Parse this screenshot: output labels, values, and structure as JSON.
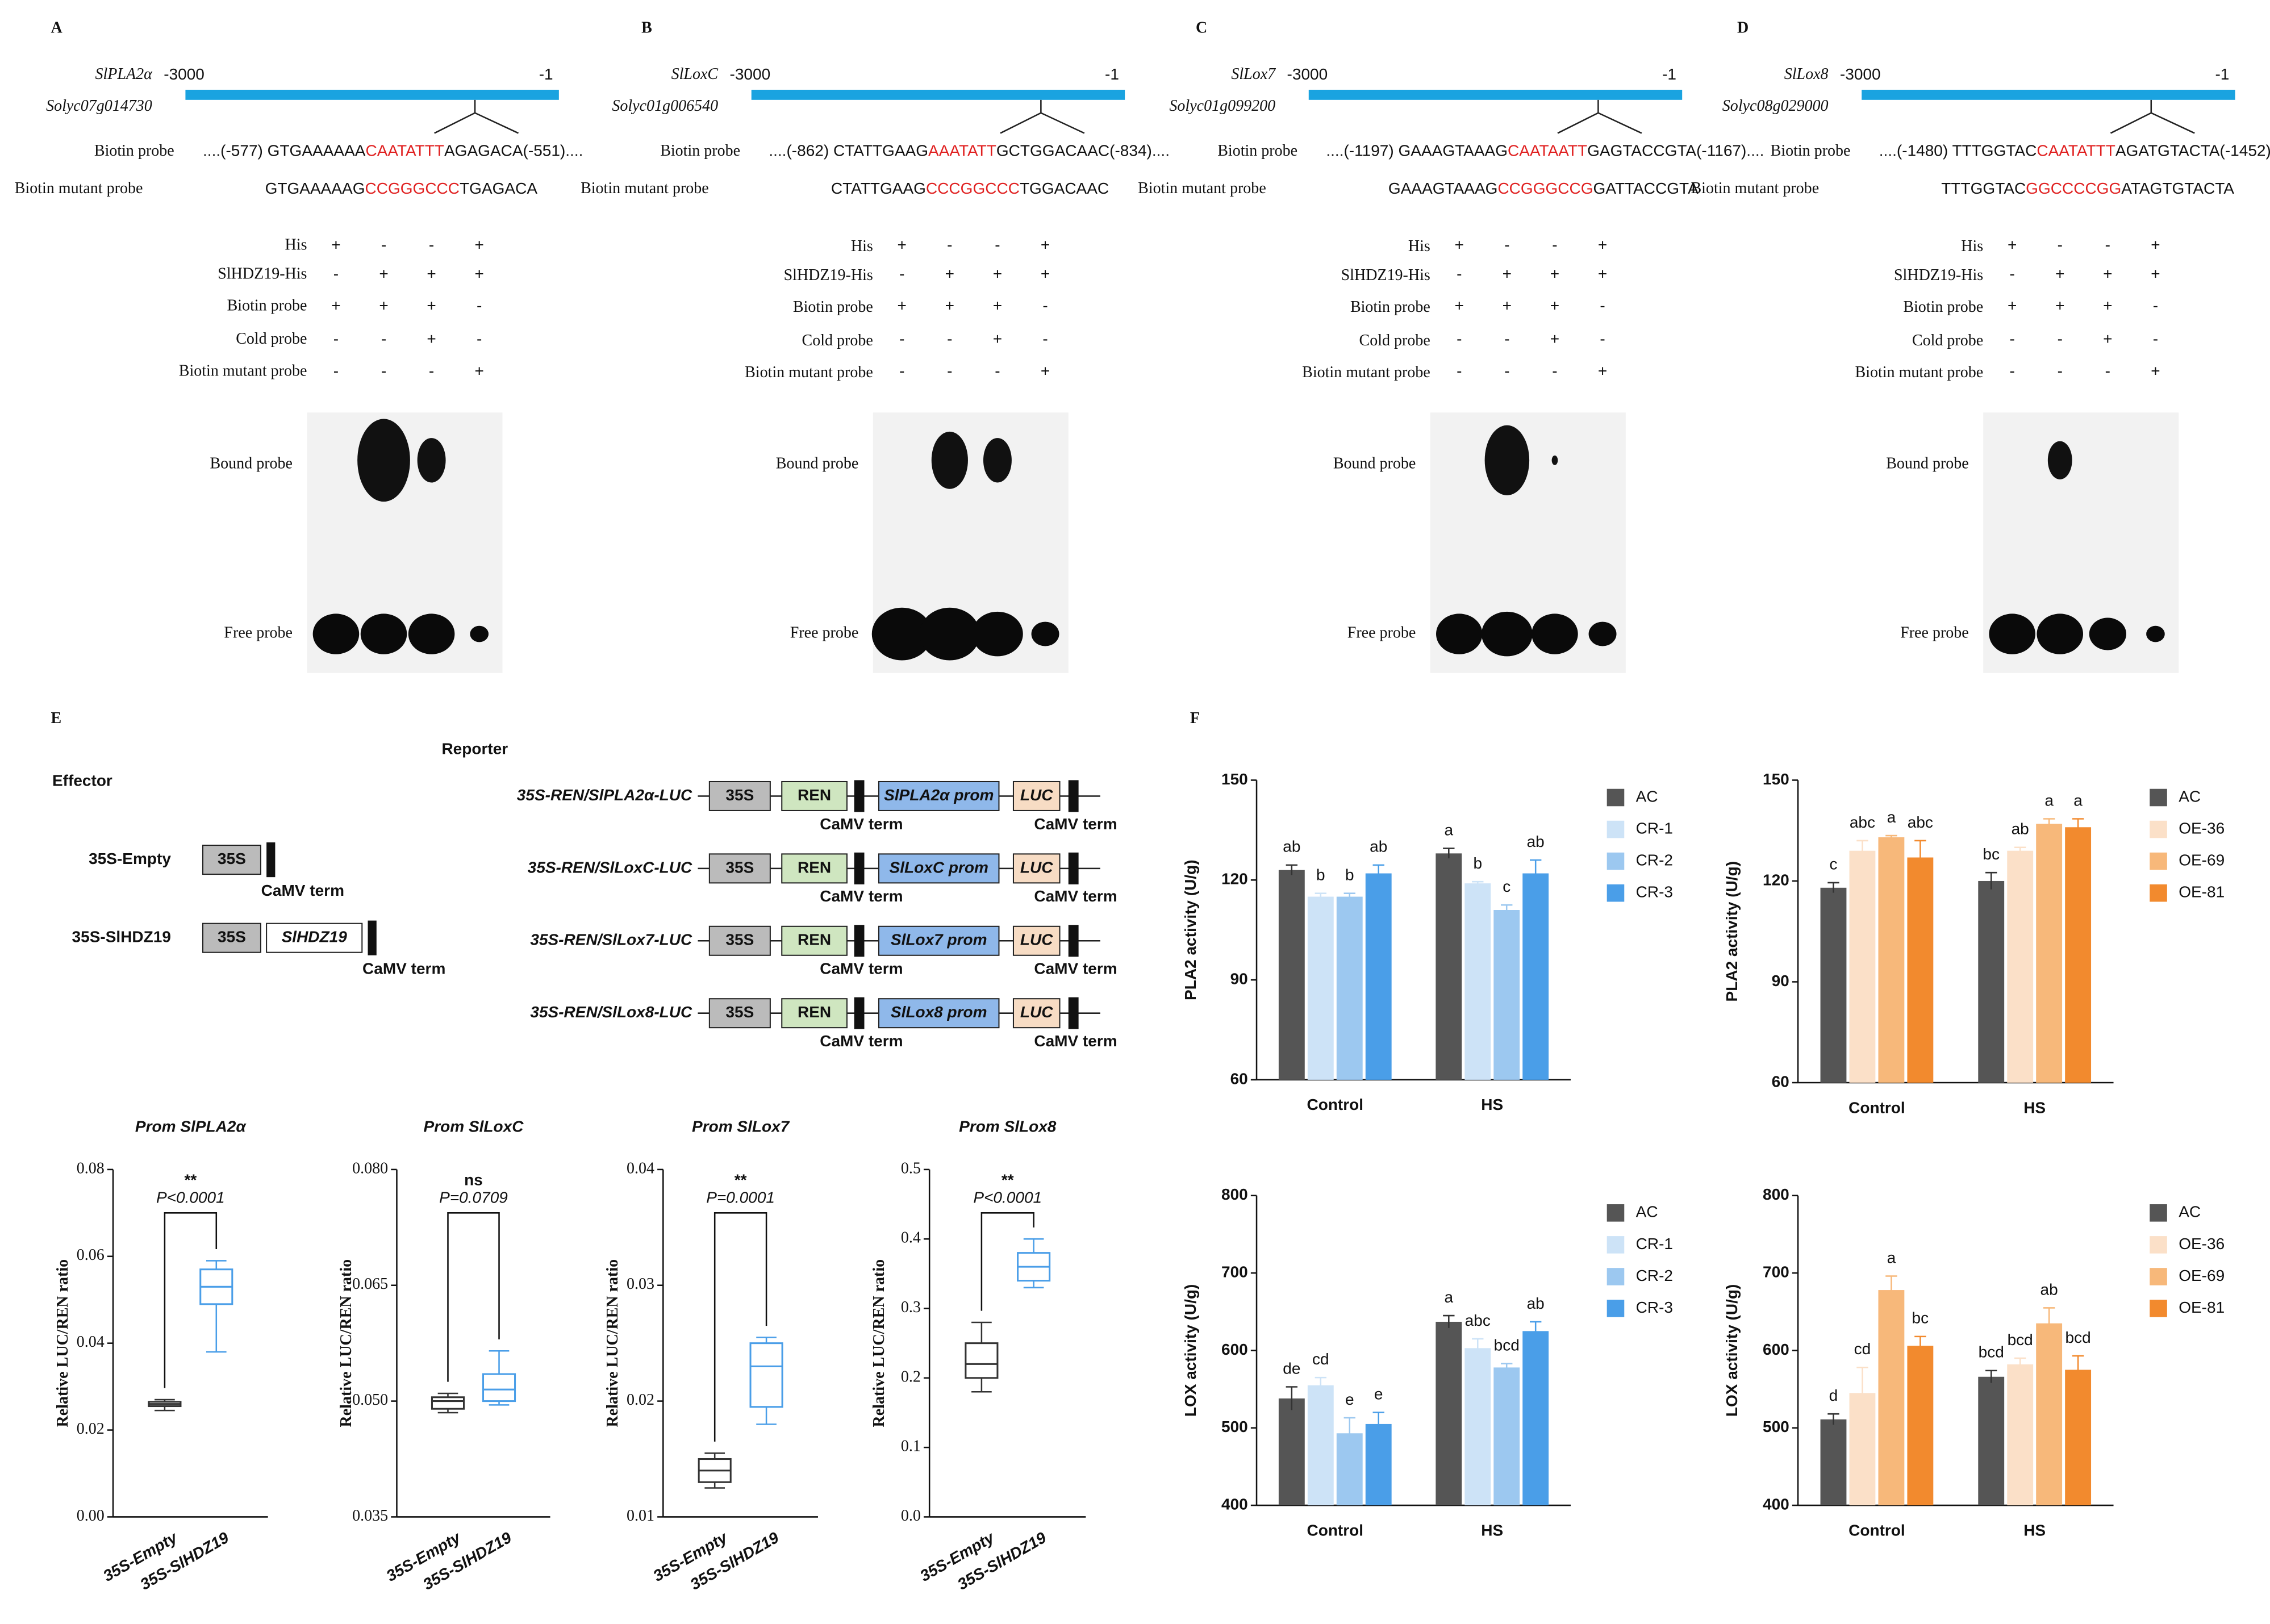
{
  "panel_labels": [
    "A",
    "B",
    "C",
    "D",
    "E",
    "F"
  ],
  "emsa": [
    {
      "gene": "SlPLA2α",
      "gene_id": "Solyc07g014730",
      "start": "-3000",
      "end": "-1",
      "probe_label": "Biotin probe",
      "probe": [
        "....(-577) GTGAAAAAA",
        "CAATATTT",
        "AGAGACA(-551)...."
      ],
      "mutant_label": "Biotin mutant probe",
      "mutant": [
        "GTGAAAAAG",
        "CCGGGCCC",
        "TGAGACA"
      ],
      "bound": "Bound probe",
      "free": "Free probe"
    },
    {
      "gene": "SlLoxC",
      "gene_id": "Solyc01g006540",
      "start": "-3000",
      "end": "-1",
      "probe_label": "Biotin probe",
      "probe": [
        "....(-862) CTATTGAAG",
        "AAATATT",
        "GCTGGACAAC(-834)...."
      ],
      "mutant_label": "Biotin mutant probe",
      "mutant": [
        "CTATTGAAG",
        "CCCGGCCC",
        "TGGACAAC"
      ],
      "bound": "Bound probe",
      "free": "Free probe"
    },
    {
      "gene": "SlLox7",
      "gene_id": "Solyc01g099200",
      "start": "-3000",
      "end": "-1",
      "probe_label": "Biotin probe",
      "probe": [
        "....(-1197) GAAAGTAAAG",
        "CAATAATT",
        "GAGTACCGTA(-1167)...."
      ],
      "mutant_label": "Biotin mutant probe",
      "mutant": [
        "GAAAGTAAAG",
        "CCGGGCCG",
        "GATTACCGTA"
      ],
      "bound": "Bound probe",
      "free": "Free probe"
    },
    {
      "gene": "SlLox8",
      "gene_id": "Solyc08g029000",
      "start": "-3000",
      "end": "-1",
      "probe_label": "Biotin probe",
      "probe": [
        "....(-1480) TTTGGTAC",
        "CAATATTT",
        "AGATGTACTA(-1452)...."
      ],
      "mutant_label": "Biotin mutant probe",
      "mutant": [
        "TTTGGTAC",
        "GGCCCCGG",
        "ATAGTGTACTA"
      ],
      "bound": "Bound probe",
      "free": "Free probe"
    }
  ],
  "emsa_rows": [
    {
      "label": "His",
      "signs": [
        "+",
        "-",
        "-",
        "+"
      ]
    },
    {
      "label": "SlHDZ19-His",
      "signs": [
        "-",
        "+",
        "+",
        "+"
      ]
    },
    {
      "label": "Biotin probe",
      "signs": [
        "+",
        "+",
        "+",
        "-"
      ]
    },
    {
      "label": "Cold probe",
      "signs": [
        "-",
        "-",
        "+",
        "-"
      ]
    },
    {
      "label": "Biotin mutant probe",
      "signs": [
        "-",
        "-",
        "-",
        "+"
      ]
    }
  ],
  "effector": {
    "title": "Effector",
    "constructs": [
      {
        "name": "35S-Empty",
        "parts": [
          "35S"
        ],
        "term": "CaMV term"
      },
      {
        "name": "35S-SlHDZ19",
        "parts": [
          "35S",
          "SlHDZ19"
        ],
        "term": "CaMV term"
      }
    ]
  },
  "reporter": {
    "title": "Reporter",
    "constructs": [
      {
        "name": "35S-REN/SlPLA2α-LUC",
        "parts": [
          "35S",
          "REN",
          "SlPLA2α prom",
          "LUC"
        ],
        "terms": [
          "CaMV term",
          "CaMV term"
        ]
      },
      {
        "name": "35S-REN/SlLoxC-LUC",
        "parts": [
          "35S",
          "REN",
          "SlLoxC prom",
          "LUC"
        ],
        "terms": [
          "CaMV term",
          "CaMV term"
        ]
      },
      {
        "name": "35S-REN/SlLox7-LUC",
        "parts": [
          "35S",
          "REN",
          "SlLox7 prom",
          "LUC"
        ],
        "terms": [
          "CaMV term",
          "CaMV term"
        ]
      },
      {
        "name": "35S-REN/SlLox8-LUC",
        "parts": [
          "35S",
          "REN",
          "SlLox8 prom",
          "LUC"
        ],
        "terms": [
          "CaMV term",
          "CaMV term"
        ]
      }
    ]
  },
  "chart_data": [
    {
      "type": "box",
      "title": "Prom SlPLA2α",
      "y_label": "Relative LUC/REN ratio",
      "categories": [
        "35S-Empty",
        "35S-SlHDZ19"
      ],
      "colors": [
        "#333333",
        "#4a9ee8"
      ],
      "ylim": [
        0,
        0.08
      ],
      "yticks": [
        {
          "value": 0,
          "label": "0.00"
        },
        0.02,
        0.04,
        0.06,
        0.08
      ],
      "boxes": [
        {
          "min": 0.0245,
          "q1": 0.0255,
          "median": 0.026,
          "q3": 0.0265,
          "max": 0.027
        },
        {
          "min": 0.038,
          "q1": 0.049,
          "median": 0.053,
          "q3": 0.057,
          "max": 0.059
        }
      ],
      "significance": "**",
      "p_value": "P<0.0001"
    },
    {
      "type": "box",
      "title": "Prom SlLoxC",
      "y_label": "Relative LUC/REN ratio",
      "categories": [
        "35S-Empty",
        "35S-SlHDZ19"
      ],
      "colors": [
        "#333333",
        "#4a9ee8"
      ],
      "ylim": [
        0.035,
        0.08
      ],
      "yticks": [
        0.035,
        {
          "value": 0.05,
          "label": "0.050"
        },
        0.065,
        {
          "value": 0.08,
          "label": "0.080"
        }
      ],
      "boxes": [
        {
          "min": 0.0485,
          "q1": 0.049,
          "median": 0.05,
          "q3": 0.0505,
          "max": 0.051
        },
        {
          "min": 0.0495,
          "q1": 0.05,
          "median": 0.0515,
          "q3": 0.0535,
          "max": 0.0565
        }
      ],
      "significance": "ns",
      "p_value": "P=0.0709"
    },
    {
      "type": "box",
      "title": "Prom SlLox7",
      "y_label": "Relative LUC/REN ratio",
      "categories": [
        "35S-Empty",
        "35S-SlHDZ19"
      ],
      "colors": [
        "#333333",
        "#4a9ee8"
      ],
      "ylim": [
        0.01,
        0.04
      ],
      "yticks": [
        0.01,
        0.02,
        0.03,
        0.04
      ],
      "boxes": [
        {
          "min": 0.0125,
          "q1": 0.013,
          "median": 0.014,
          "q3": 0.015,
          "max": 0.0155
        },
        {
          "min": 0.018,
          "q1": 0.0195,
          "median": 0.023,
          "q3": 0.025,
          "max": 0.0255
        }
      ],
      "significance": "**",
      "p_value": "P=0.0001"
    },
    {
      "type": "box",
      "title": "Prom SlLox8",
      "y_label": "Relative LUC/REN ratio",
      "categories": [
        "35S-Empty",
        "35S-SlHDZ19"
      ],
      "colors": [
        "#333333",
        "#4a9ee8"
      ],
      "ylim": [
        0,
        0.5
      ],
      "yticks": [
        {
          "value": 0,
          "label": "0.0"
        },
        0.1,
        0.2,
        0.3,
        0.4,
        0.5
      ],
      "boxes": [
        {
          "min": 0.18,
          "q1": 0.2,
          "median": 0.22,
          "q3": 0.25,
          "max": 0.28
        },
        {
          "min": 0.33,
          "q1": 0.34,
          "median": 0.36,
          "q3": 0.38,
          "max": 0.4
        }
      ],
      "significance": "**",
      "p_value": "P<0.0001"
    },
    {
      "type": "bar",
      "y_label": "PLA2 activity (U/g)",
      "categories": [
        "Control",
        "HS"
      ],
      "ylim": [
        60,
        150
      ],
      "yticks": [
        60,
        90,
        120,
        150
      ],
      "series": [
        {
          "name": "AC",
          "color": "#555555",
          "values": [
            123,
            128
          ],
          "errors": [
            1.5,
            1.5
          ],
          "letters": [
            "ab",
            "a"
          ]
        },
        {
          "name": "CR-1",
          "color": "#cde3f7",
          "values": [
            115,
            119
          ],
          "errors": [
            1,
            0.5
          ],
          "letters": [
            "b",
            "b"
          ]
        },
        {
          "name": "CR-2",
          "color": "#9cc8f0",
          "values": [
            115,
            111
          ],
          "errors": [
            1,
            1.5
          ],
          "letters": [
            "b",
            "c"
          ]
        },
        {
          "name": "CR-3",
          "color": "#4a9ee8",
          "values": [
            122,
            122
          ],
          "errors": [
            2.5,
            4
          ],
          "letters": [
            "ab",
            "ab"
          ]
        }
      ]
    },
    {
      "type": "bar",
      "y_label": "PLA2 activity (U/g)",
      "categories": [
        "Control",
        "HS"
      ],
      "ylim": [
        60,
        150
      ],
      "yticks": [
        60,
        90,
        120,
        150
      ],
      "series": [
        {
          "name": "AC",
          "color": "#555555",
          "values": [
            118,
            120
          ],
          "errors": [
            1.5,
            2.5
          ],
          "letters": [
            "c",
            "bc"
          ]
        },
        {
          "name": "OE-36",
          "color": "#fbe0c8",
          "values": [
            129,
            129
          ],
          "errors": [
            3,
            1
          ],
          "letters": [
            "abc",
            "ab"
          ]
        },
        {
          "name": "OE-69",
          "color": "#f7b87a",
          "values": [
            133,
            137
          ],
          "errors": [
            0.5,
            1.5
          ],
          "letters": [
            "a",
            "a"
          ]
        },
        {
          "name": "OE-81",
          "color": "#f28a2e",
          "values": [
            127,
            136
          ],
          "errors": [
            5,
            2.5
          ],
          "letters": [
            "abc",
            "a"
          ]
        }
      ]
    },
    {
      "type": "bar",
      "y_label": "LOX activity (U/g)",
      "categories": [
        "Control",
        "HS"
      ],
      "ylim": [
        400,
        800
      ],
      "yticks": [
        400,
        500,
        600,
        700,
        800
      ],
      "series": [
        {
          "name": "AC",
          "color": "#555555",
          "values": [
            538,
            637
          ],
          "errors": [
            15,
            8
          ],
          "letters": [
            "de",
            "a"
          ]
        },
        {
          "name": "CR-1",
          "color": "#cde3f7",
          "values": [
            555,
            603
          ],
          "errors": [
            10,
            12
          ],
          "letters": [
            "cd",
            "abc"
          ]
        },
        {
          "name": "CR-2",
          "color": "#9cc8f0",
          "values": [
            493,
            578
          ],
          "errors": [
            20,
            5
          ],
          "letters": [
            "e",
            "bcd"
          ]
        },
        {
          "name": "CR-3",
          "color": "#4a9ee8",
          "values": [
            505,
            625
          ],
          "errors": [
            15,
            12
          ],
          "letters": [
            "e",
            "ab"
          ]
        }
      ]
    },
    {
      "type": "bar",
      "y_label": "LOX activity (U/g)",
      "categories": [
        "Control",
        "HS"
      ],
      "ylim": [
        400,
        800
      ],
      "yticks": [
        400,
        500,
        600,
        700,
        800
      ],
      "series": [
        {
          "name": "AC",
          "color": "#555555",
          "values": [
            511,
            566
          ],
          "errors": [
            7,
            8
          ],
          "letters": [
            "d",
            "bcd"
          ]
        },
        {
          "name": "OE-36",
          "color": "#fbe0c8",
          "values": [
            545,
            582
          ],
          "errors": [
            33,
            8
          ],
          "letters": [
            "cd",
            "bcd"
          ]
        },
        {
          "name": "OE-69",
          "color": "#f7b87a",
          "values": [
            678,
            635
          ],
          "errors": [
            18,
            20
          ],
          "letters": [
            "a",
            "ab"
          ]
        },
        {
          "name": "OE-81",
          "color": "#f28a2e",
          "values": [
            606,
            575
          ],
          "errors": [
            12,
            18
          ],
          "letters": [
            "bc",
            "bcd"
          ]
        }
      ]
    }
  ]
}
